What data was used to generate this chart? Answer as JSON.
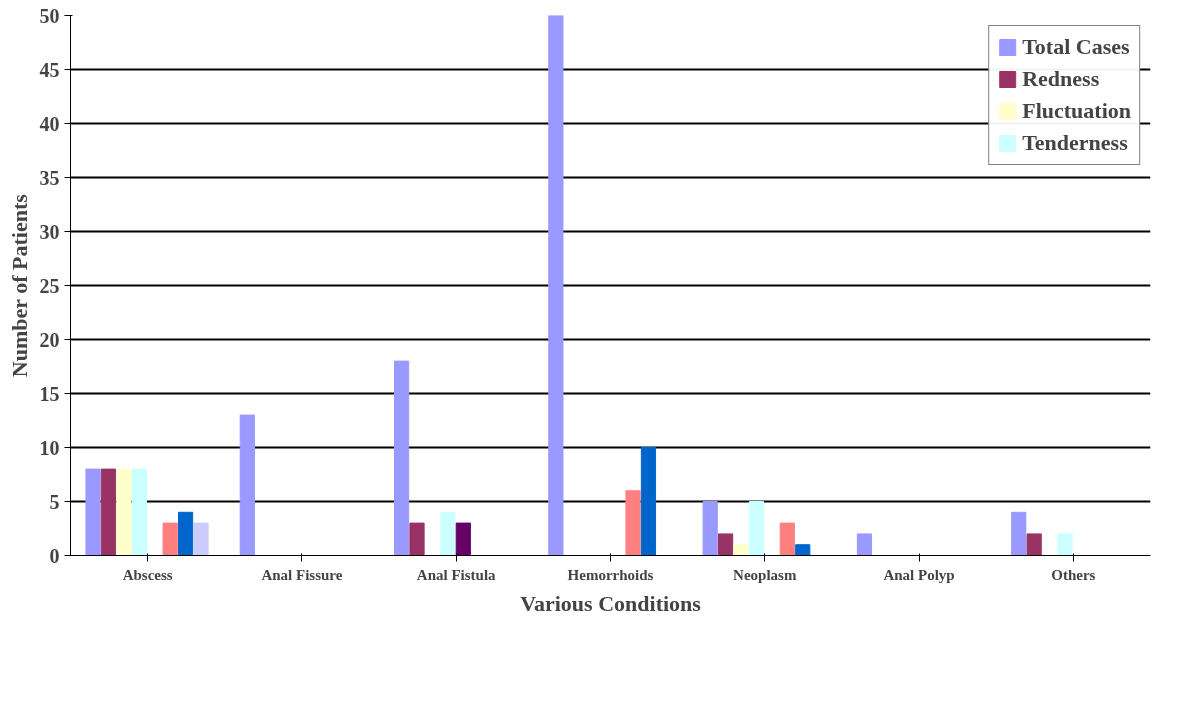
{
  "chart_data": {
    "type": "bar",
    "xlabel": "Various Conditions",
    "ylabel": "Number of Patients",
    "categories": [
      "Abscess",
      "Anal Fissure",
      "Anal Fistula",
      "Hemorrhoids",
      "Neoplasm",
      "Anal Polyp",
      "Others"
    ],
    "series": [
      {
        "name": "Total Cases",
        "color": "#9999ff",
        "values": [
          8,
          13,
          18,
          50,
          5,
          2,
          4
        ]
      },
      {
        "name": "Redness",
        "color": "#993366",
        "values": [
          8,
          0,
          3,
          0,
          2,
          0,
          2
        ]
      },
      {
        "name": "Fluctuation",
        "color": "#ffffcc",
        "values": [
          8,
          0,
          0,
          0,
          1,
          0,
          0
        ]
      },
      {
        "name": "Tenderness",
        "color": "#ccffff",
        "values": [
          8,
          0,
          4,
          0,
          5,
          0,
          2
        ]
      },
      {
        "color": "#660066",
        "values": [
          0,
          0,
          3,
          0,
          0,
          0,
          0
        ]
      },
      {
        "color": "#ff8080",
        "values": [
          3,
          0,
          0,
          6,
          3,
          0,
          0
        ]
      },
      {
        "color": "#0066cc",
        "values": [
          4,
          0,
          0,
          10,
          1,
          0,
          0
        ]
      },
      {
        "color": "#ccccff",
        "values": [
          3,
          0,
          0,
          0,
          0,
          0,
          0
        ]
      }
    ],
    "ylim": [
      0,
      50
    ],
    "yticks": [
      0,
      5,
      10,
      15,
      20,
      25,
      30,
      35,
      40,
      45,
      50
    ],
    "grid": "y",
    "legend": "top right"
  }
}
